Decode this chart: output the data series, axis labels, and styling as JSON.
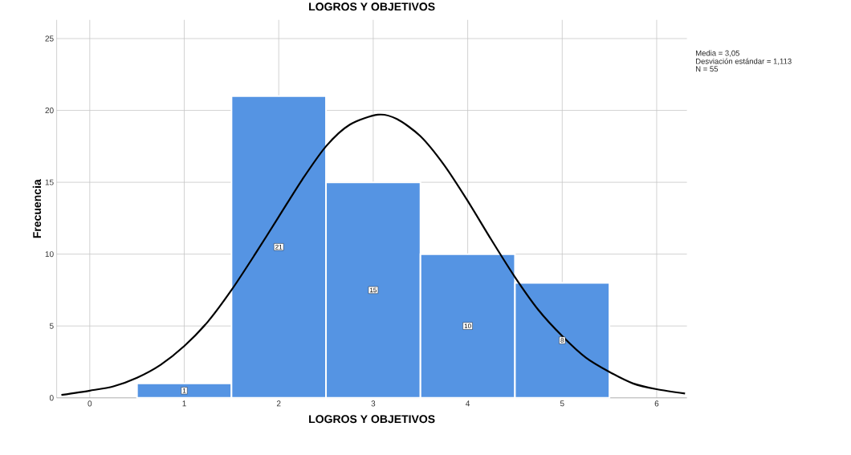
{
  "chart_data": {
    "type": "histogram",
    "title": "LOGROS Y OBJETIVOS",
    "xlabel": "LOGROS Y OBJETIVOS",
    "ylabel": "Frecuencia",
    "bins": [
      0.5,
      1.5,
      2.5,
      3.5,
      4.5,
      5.5
    ],
    "series": [
      {
        "color": "#5594e3",
        "values": [
          1,
          21,
          15,
          10,
          8
        ],
        "value_labels": [
          "1",
          "21",
          "15",
          "10",
          "8"
        ]
      },
      {
        "type": "line",
        "color": "#000000",
        "x": [
          -0.3,
          0,
          0.25,
          0.5,
          0.75,
          1,
          1.25,
          1.5,
          1.75,
          2,
          2.25,
          2.5,
          2.75,
          3.05,
          3.25,
          3.5,
          3.75,
          4,
          4.25,
          4.5,
          4.75,
          5,
          5.25,
          5.5,
          5.75,
          6,
          6.3
        ],
        "values": [
          0.2,
          0.5,
          0.8,
          1.4,
          2.3,
          3.6,
          5.3,
          7.5,
          10.0,
          12.6,
          15.2,
          17.5,
          19.0,
          19.7,
          19.4,
          18.2,
          16.2,
          13.7,
          11.0,
          8.4,
          6.1,
          4.3,
          2.8,
          1.8,
          1.0,
          0.6,
          0.3
        ]
      }
    ],
    "xlim": [
      -0.35,
      6.32
    ],
    "ylim": [
      0,
      26.3
    ],
    "xticks": [
      0,
      1,
      2,
      3,
      4,
      5,
      6
    ],
    "yticks": [
      0,
      5,
      10,
      15,
      20,
      25
    ],
    "grid": true,
    "marker": "none",
    "line_style": "solid",
    "annotations": [
      "Media = 3,05",
      "Desviación estándar = 1,113",
      "N = 55"
    ]
  }
}
